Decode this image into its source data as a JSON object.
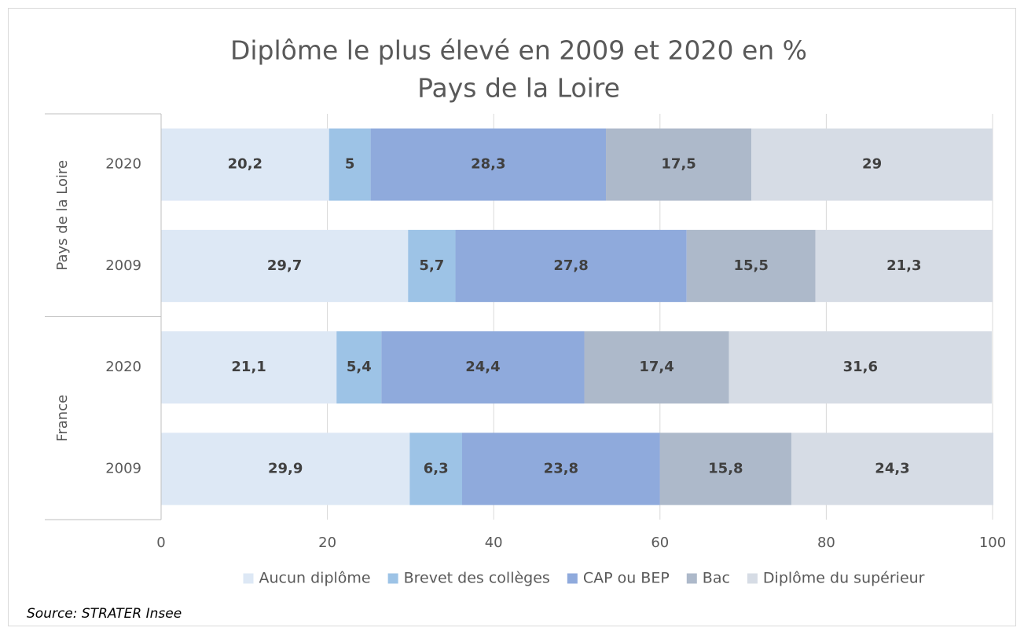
{
  "chart_data": {
    "type": "stacked_barh",
    "title": "Diplôme le plus élevé en 2009 et 2020 en %",
    "subtitle": "Pays de la Loire",
    "source": "Source: STRATER Insee",
    "categories": [
      "2020",
      "2009",
      "2020",
      "2009"
    ],
    "category_groups": [
      {
        "name": "Pays de la Loire",
        "count": 2
      },
      {
        "name": "France",
        "count": 2
      }
    ],
    "series": [
      {
        "name": "Aucun diplôme",
        "color": "#dde8f5",
        "values": [
          20.2,
          29.7,
          21.1,
          29.9
        ],
        "value_labels": [
          "20,2",
          "29,7",
          "21,1",
          "29,9"
        ]
      },
      {
        "name": "Brevet des collèges",
        "color": "#9dc3e6",
        "values": [
          5,
          5.7,
          5.4,
          6.3
        ],
        "value_labels": [
          "5",
          "5,7",
          "5,4",
          "6,3"
        ]
      },
      {
        "name": "CAP ou BEP",
        "color": "#8faadc",
        "values": [
          28.3,
          27.8,
          24.4,
          23.8
        ],
        "value_labels": [
          "28,3",
          "27,8",
          "24,4",
          "23,8"
        ]
      },
      {
        "name": "Bac",
        "color": "#adb9ca",
        "values": [
          17.5,
          15.5,
          17.4,
          15.8
        ],
        "value_labels": [
          "17,5",
          "15,5",
          "17,4",
          "15,8"
        ]
      },
      {
        "name": "Diplôme du supérieur",
        "color": "#d6dce5",
        "values": [
          29,
          21.3,
          31.6,
          24.3
        ],
        "value_labels": [
          "29",
          "21,3",
          "31,6",
          "24,3"
        ]
      }
    ],
    "xlim": [
      0,
      100
    ],
    "xticks": [
      0,
      20,
      40,
      60,
      80,
      100
    ],
    "grid": true,
    "legend": "bottom"
  }
}
